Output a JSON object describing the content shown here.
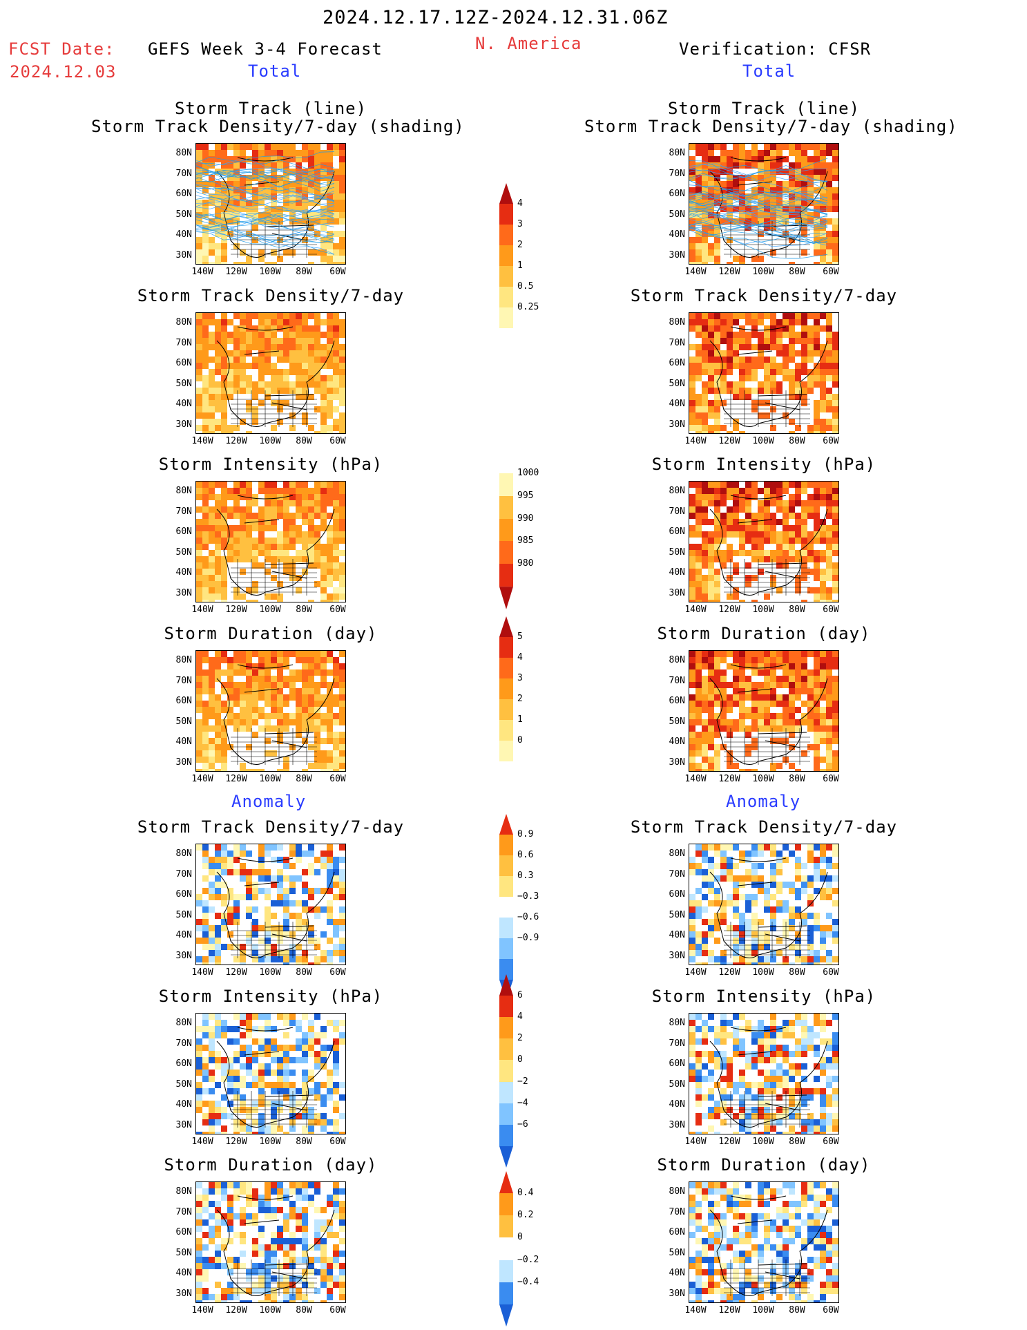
{
  "header": {
    "period": "2024.12.17.12Z-2024.12.31.06Z",
    "fcst_label": "FCST Date:",
    "fcst_date": "2024.12.03",
    "model": "GEFS Week 3-4 Forecast",
    "region": "N. America",
    "verification": "Verification: CFSR",
    "section_total": "Total",
    "section_anomaly": "Anomaly"
  },
  "panel_titles": {
    "track_line": "Storm Track (line)",
    "track_shading": "Storm Track Density/7-day (shading)",
    "density": "Storm Track Density/7-day",
    "intensity": "Storm Intensity (hPa)",
    "duration": "Storm Duration (day)"
  },
  "axes": {
    "lat_ticks": [
      "80N",
      "70N",
      "60N",
      "50N",
      "40N",
      "30N"
    ],
    "lon_ticks": [
      "140W",
      "120W",
      "100W",
      "80W",
      "60W"
    ]
  },
  "colorbars": {
    "density_total": [
      "4",
      "3",
      "2",
      "1",
      "0.5",
      "0.25"
    ],
    "intensity_total": [
      "1000",
      "995",
      "990",
      "985",
      "980"
    ],
    "duration_total": [
      "5",
      "4",
      "3",
      "2",
      "1",
      "0"
    ],
    "density_anom": [
      "0.9",
      "0.6",
      "0.3",
      "−0.3",
      "−0.6",
      "−0.9"
    ],
    "intensity_anom": [
      "6",
      "4",
      "2",
      "0",
      "−2",
      "−4",
      "−6"
    ],
    "duration_anom": [
      "0.4",
      "0.2",
      "0",
      "−0.2",
      "−0.4"
    ]
  },
  "colors": {
    "pale_yellow": "#fff7b3",
    "yellow": "#ffe680",
    "light_orange": "#ffc040",
    "orange": "#ff9a1a",
    "dark_orange": "#ff6a1a",
    "red": "#e62d12",
    "dark_red": "#b00e0e",
    "light_blue": "#bfe6ff",
    "sky_blue": "#80c4ff",
    "blue": "#3a8cf0",
    "dark_blue": "#1a5fd6",
    "track_line": "#1e9be6"
  }
}
